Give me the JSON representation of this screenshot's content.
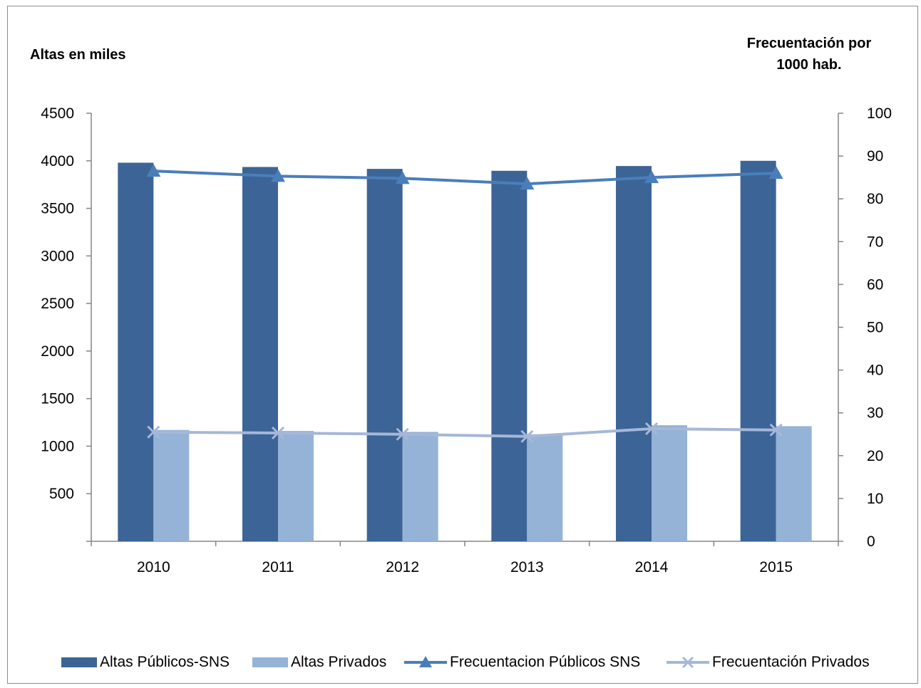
{
  "chart_data": {
    "type": "bar",
    "ylabel_left": "Altas en miles",
    "ylabel_right_line1": "Frecuentación por",
    "ylabel_right_line2": "1000 hab.",
    "categories": [
      "2010",
      "2011",
      "2012",
      "2013",
      "2014",
      "2015"
    ],
    "y_left": {
      "ticks": [
        "500",
        "1000",
        "1500",
        "2000",
        "2500",
        "3000",
        "3500",
        "4000",
        "4500"
      ],
      "ylim": [
        0,
        4500
      ]
    },
    "y_right": {
      "ticks": [
        "0",
        "10",
        "20",
        "30",
        "40",
        "50",
        "60",
        "70",
        "80",
        "90",
        "100"
      ],
      "ylim": [
        0,
        100
      ]
    },
    "series": [
      {
        "name": "Altas Públicos-SNS",
        "type": "bar",
        "axis": "left",
        "color": "#3c6496",
        "values": [
          3980,
          3935,
          3915,
          3895,
          3945,
          4000
        ]
      },
      {
        "name": "Altas Privados",
        "type": "bar",
        "axis": "left",
        "color": "#95b3d7",
        "values": [
          1170,
          1160,
          1150,
          1125,
          1220,
          1210
        ]
      },
      {
        "name": "Frecuentacion Públicos SNS",
        "type": "line",
        "axis": "right",
        "marker": "triangle",
        "color": "#4a7ebb",
        "values": [
          86.5,
          85.3,
          84.8,
          83.5,
          85.0,
          86.0
        ]
      },
      {
        "name": "Frecuentación Privados",
        "type": "line",
        "axis": "right",
        "marker": "x",
        "color": "#a6b7d8",
        "values": [
          25.5,
          25.3,
          25.0,
          24.5,
          26.3,
          26.0
        ]
      }
    ],
    "grid": false,
    "legend_position": "bottom"
  }
}
